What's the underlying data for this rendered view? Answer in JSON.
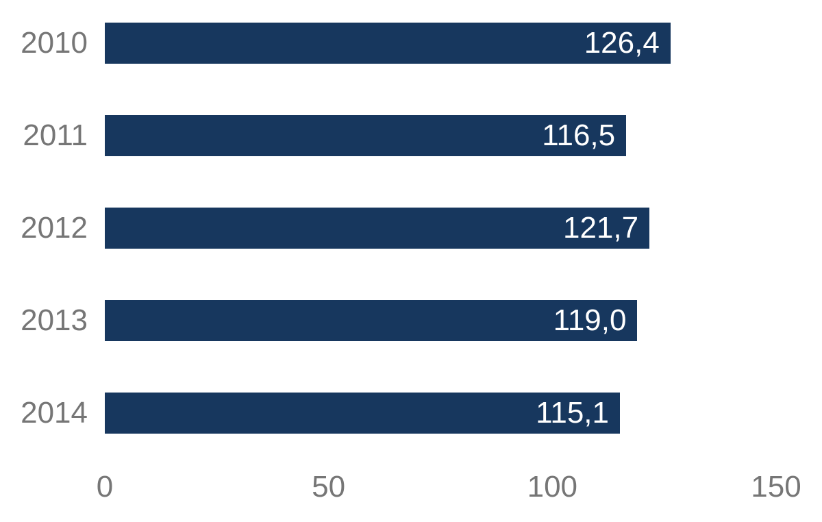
{
  "chart_data": {
    "type": "bar",
    "orientation": "horizontal",
    "title": "",
    "xlabel": "",
    "ylabel": "",
    "categories": [
      "2010",
      "2011",
      "2012",
      "2013",
      "2014"
    ],
    "values": [
      126.4,
      116.5,
      121.7,
      119.0,
      115.1
    ],
    "value_labels": [
      "126,4",
      "116,5",
      "121,7",
      "119,0",
      "115,1"
    ],
    "xlim": [
      0,
      150
    ],
    "x_ticks": [
      0,
      50,
      100,
      150
    ],
    "x_tick_labels": [
      "0",
      "50",
      "100",
      "150"
    ],
    "grid": false,
    "legend_position": "none",
    "colors": {
      "bar": "#17375E",
      "axis_text": "#767676",
      "category_text": "#767676",
      "value_text": "#FFFFFF",
      "background": "#FFFFFF"
    }
  }
}
